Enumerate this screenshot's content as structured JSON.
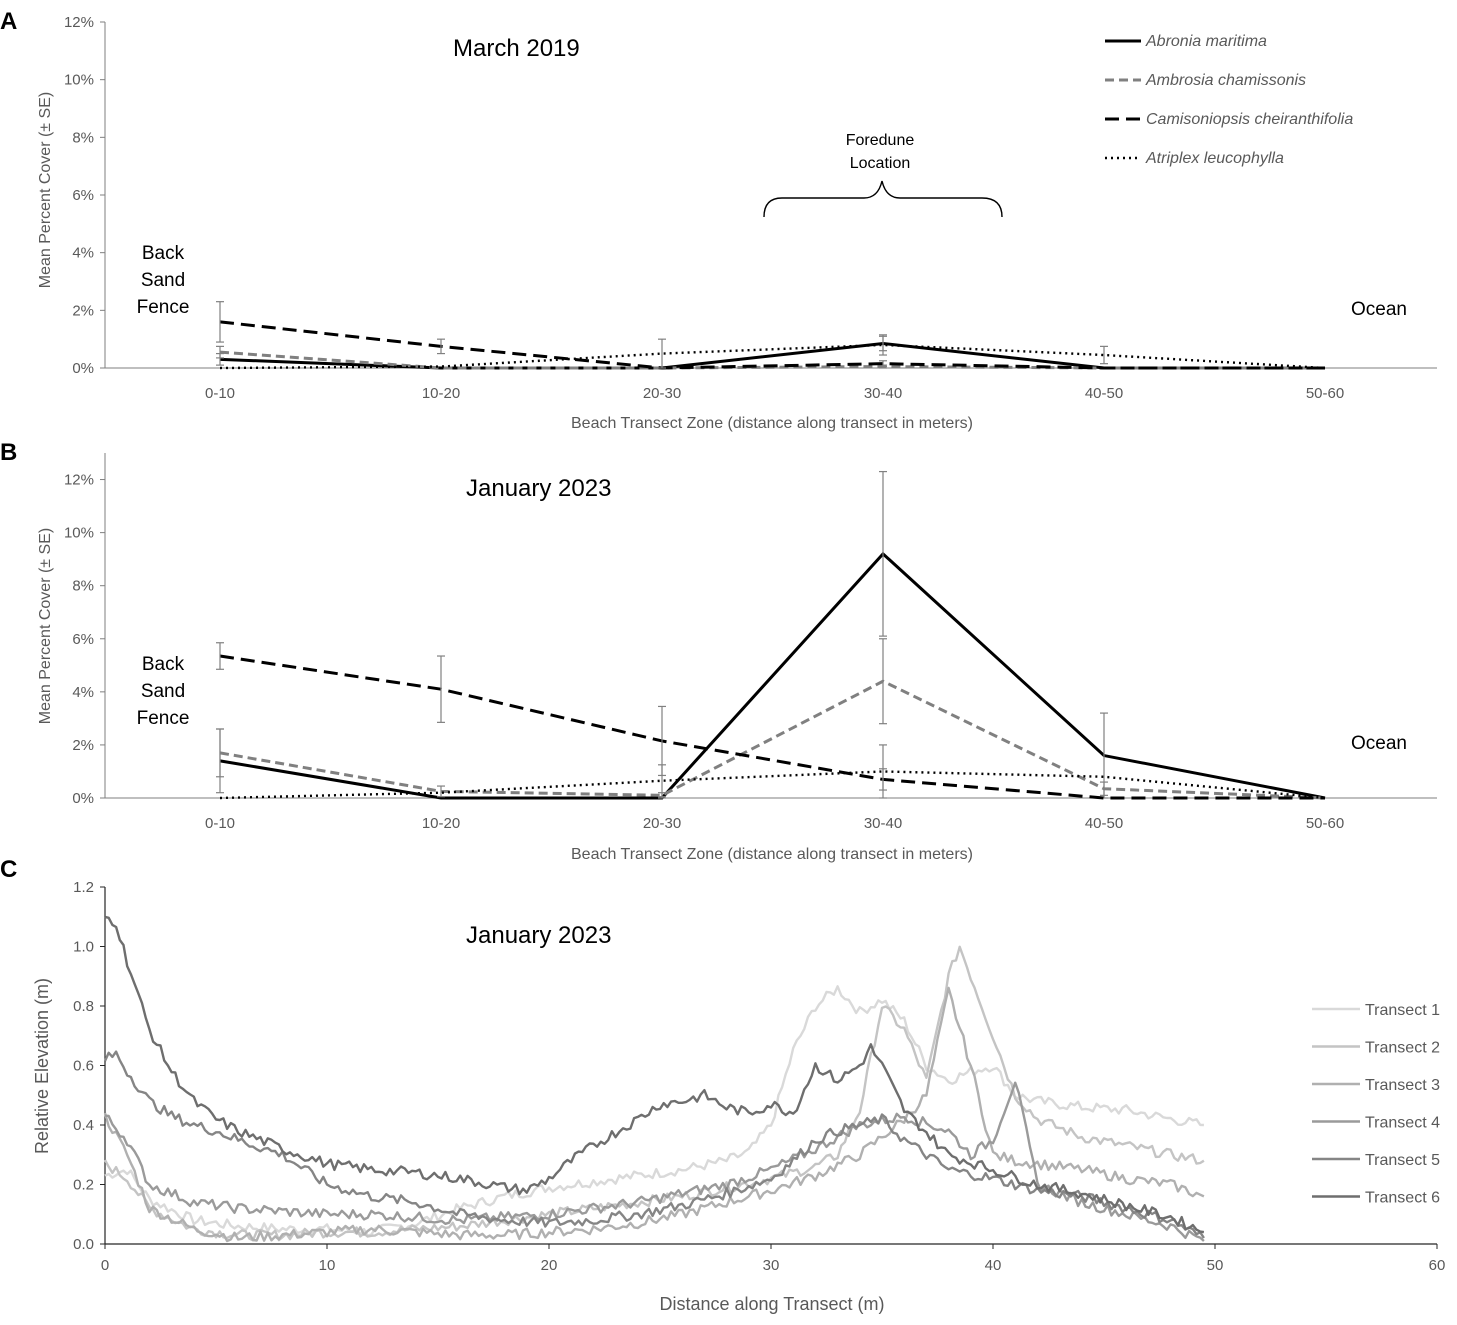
{
  "chart_data": [
    {
      "panel": "A",
      "type": "line",
      "title": "March 2019",
      "xlabel": "Beach Transect Zone (distance along transect in meters)",
      "ylabel": "Mean Percent Cover (± SE)",
      "categories": [
        "0-10",
        "10-20",
        "20-30",
        "30-40",
        "40-50",
        "50-60"
      ],
      "ylim": [
        0,
        12
      ],
      "yticks": [
        "0%",
        "2%",
        "4%",
        "6%",
        "8%",
        "10%",
        "12%"
      ],
      "series": [
        {
          "name": "Abronia maritima",
          "style": "solid",
          "color": "#000000",
          "values": [
            0.3,
            0.0,
            0.0,
            0.85,
            0.0,
            0.0
          ],
          "err": [
            0.2,
            0.0,
            0.0,
            0.25,
            0.0,
            0.0
          ]
        },
        {
          "name": "Ambrosia chamissonis",
          "style": "dash-gray",
          "color": "#808080",
          "values": [
            0.55,
            0.0,
            0.0,
            0.05,
            0.0,
            0.0
          ],
          "err": [
            0.2,
            0.0,
            0.0,
            0.05,
            0.0,
            0.0
          ]
        },
        {
          "name": "Camisoniopsis cheiranthifolia",
          "style": "dash-black",
          "color": "#000000",
          "values": [
            1.6,
            0.75,
            0.0,
            0.15,
            0.0,
            0.0
          ],
          "err": [
            0.7,
            0.25,
            0.0,
            0.1,
            0.0,
            0.0
          ]
        },
        {
          "name": "Atriplex leucophylla",
          "style": "dotted",
          "color": "#000000",
          "values": [
            0.0,
            0.05,
            0.5,
            0.8,
            0.45,
            0.0
          ],
          "err": [
            0.0,
            0.0,
            0.5,
            0.35,
            0.3,
            0.0
          ]
        }
      ],
      "annotations": {
        "left": [
          "Back",
          "Sand",
          "Fence"
        ],
        "right": "Ocean",
        "bracket": [
          "Foredune",
          "Location"
        ]
      },
      "legend_position": "top-right"
    },
    {
      "panel": "B",
      "type": "line",
      "title": "January 2023",
      "xlabel": "Beach Transect Zone (distance along transect in meters)",
      "ylabel": "Mean Percent Cover (± SE)",
      "categories": [
        "0-10",
        "10-20",
        "20-30",
        "30-40",
        "40-50",
        "50-60"
      ],
      "ylim": [
        0,
        13
      ],
      "yticks": [
        "0%",
        "2%",
        "4%",
        "6%",
        "8%",
        "10%",
        "12%"
      ],
      "series": [
        {
          "name": "Abronia maritima",
          "style": "solid",
          "color": "#000000",
          "values": [
            1.4,
            0.0,
            0.0,
            9.2,
            1.6,
            0.0
          ],
          "err": [
            1.2,
            0.0,
            0.0,
            3.1,
            1.6,
            0.0
          ]
        },
        {
          "name": "Ambrosia chamissonis",
          "style": "dash-gray",
          "color": "#808080",
          "values": [
            1.7,
            0.25,
            0.1,
            4.4,
            0.35,
            0.0
          ],
          "err": [
            0.9,
            0.2,
            0.1,
            1.6,
            0.25,
            0.0
          ]
        },
        {
          "name": "Camisoniopsis cheiranthifolia",
          "style": "dash-black",
          "color": "#000000",
          "values": [
            5.35,
            4.1,
            2.15,
            0.7,
            0.0,
            0.0
          ],
          "err": [
            0.5,
            1.25,
            1.3,
            0.4,
            0.0,
            0.0
          ]
        },
        {
          "name": "Atriplex leucophylla",
          "style": "dotted",
          "color": "#000000",
          "values": [
            0.0,
            0.2,
            0.65,
            1.0,
            0.8,
            0.0
          ],
          "err": [
            0.0,
            0.0,
            0.6,
            1.0,
            0.0,
            0.0
          ]
        }
      ],
      "annotations": {
        "left": [
          "Back",
          "Sand",
          "Fence"
        ],
        "right": "Ocean"
      }
    },
    {
      "panel": "C",
      "type": "line",
      "title": "January 2023",
      "xlabel": "Distance along Transect (m)",
      "ylabel": "Relative Elevation (m)",
      "xlim": [
        0,
        60
      ],
      "ylim": [
        0,
        1.2
      ],
      "xticks": [
        "0",
        "10",
        "20",
        "30",
        "40",
        "50",
        "60"
      ],
      "yticks": [
        "0.0",
        "0.2",
        "0.4",
        "0.6",
        "0.8",
        "1.0",
        "1.2"
      ],
      "legend_position": "right",
      "series": [
        {
          "name": "Transect 1",
          "color": "#d9d9d9",
          "x": [
            0,
            1,
            2,
            4,
            6,
            8,
            10,
            12,
            14,
            16,
            18,
            20,
            22,
            24,
            26,
            28,
            29,
            30,
            31,
            32,
            33,
            34,
            35,
            36,
            37,
            38,
            39,
            40,
            41,
            42,
            44,
            46,
            48,
            49.5
          ],
          "y": [
            0.23,
            0.25,
            0.15,
            0.08,
            0.06,
            0.05,
            0.05,
            0.04,
            0.07,
            0.12,
            0.16,
            0.19,
            0.21,
            0.23,
            0.25,
            0.28,
            0.31,
            0.4,
            0.65,
            0.8,
            0.86,
            0.78,
            0.82,
            0.75,
            0.6,
            0.55,
            0.58,
            0.6,
            0.5,
            0.48,
            0.46,
            0.45,
            0.42,
            0.4
          ]
        },
        {
          "name": "Transect 2",
          "color": "#c4c4c4",
          "x": [
            0,
            1,
            2,
            4,
            6,
            8,
            10,
            12,
            14,
            16,
            18,
            20,
            22,
            24,
            26,
            28,
            30,
            32,
            33,
            34,
            35,
            36,
            37,
            38,
            38.5,
            39,
            40,
            41,
            42,
            44,
            46,
            48,
            49.5
          ],
          "y": [
            0.27,
            0.22,
            0.12,
            0.05,
            0.03,
            0.03,
            0.04,
            0.04,
            0.05,
            0.06,
            0.08,
            0.1,
            0.12,
            0.14,
            0.16,
            0.19,
            0.22,
            0.26,
            0.3,
            0.45,
            0.8,
            0.72,
            0.55,
            0.9,
            1.0,
            0.9,
            0.7,
            0.5,
            0.42,
            0.36,
            0.33,
            0.3,
            0.28
          ]
        },
        {
          "name": "Transect 3",
          "color": "#b0b0b0",
          "x": [
            0,
            1,
            2,
            4,
            6,
            8,
            10,
            12,
            14,
            16,
            18,
            20,
            22,
            24,
            26,
            28,
            30,
            32,
            34,
            35,
            36,
            37,
            38,
            39,
            40,
            41,
            42,
            44,
            46,
            48,
            49.5
          ],
          "y": [
            0.43,
            0.3,
            0.12,
            0.05,
            0.02,
            0.03,
            0.04,
            0.05,
            0.04,
            0.03,
            0.03,
            0.04,
            0.05,
            0.07,
            0.1,
            0.14,
            0.18,
            0.23,
            0.3,
            0.36,
            0.42,
            0.5,
            0.85,
            0.6,
            0.3,
            0.28,
            0.27,
            0.25,
            0.22,
            0.2,
            0.16
          ]
        },
        {
          "name": "Transect 4",
          "color": "#9a9a9a",
          "x": [
            0,
            1,
            2,
            4,
            6,
            8,
            10,
            12,
            14,
            16,
            18,
            20,
            22,
            24,
            26,
            28,
            30,
            32,
            34,
            36,
            38,
            39,
            40,
            41,
            42,
            44,
            46,
            48,
            49.5
          ],
          "y": [
            0.43,
            0.35,
            0.2,
            0.14,
            0.12,
            0.11,
            0.1,
            0.1,
            0.09,
            0.08,
            0.09,
            0.1,
            0.12,
            0.14,
            0.17,
            0.2,
            0.25,
            0.32,
            0.4,
            0.43,
            0.38,
            0.3,
            0.35,
            0.55,
            0.2,
            0.14,
            0.1,
            0.06,
            0.01
          ]
        },
        {
          "name": "Transect 5",
          "color": "#858585",
          "x": [
            0,
            0.5,
            1,
            2,
            3,
            4,
            5,
            6,
            8,
            10,
            12,
            14,
            16,
            18,
            20,
            22,
            24,
            26,
            28,
            30,
            31,
            32,
            33,
            34,
            35,
            36,
            38,
            40,
            42,
            44,
            46,
            48,
            49.5
          ],
          "y": [
            0.62,
            0.64,
            0.58,
            0.48,
            0.43,
            0.4,
            0.38,
            0.35,
            0.3,
            0.2,
            0.16,
            0.14,
            0.1,
            0.08,
            0.07,
            0.08,
            0.1,
            0.13,
            0.17,
            0.22,
            0.28,
            0.35,
            0.38,
            0.4,
            0.42,
            0.35,
            0.25,
            0.22,
            0.18,
            0.16,
            0.12,
            0.08,
            0.02
          ]
        },
        {
          "name": "Transect 6",
          "color": "#6e6e6e",
          "x": [
            0,
            0.5,
            1,
            2,
            3,
            4,
            5,
            6,
            8,
            10,
            12,
            14,
            16,
            18,
            19,
            20,
            21,
            22,
            24,
            25,
            26,
            27,
            28,
            29,
            30,
            31,
            32,
            33,
            34,
            34.5,
            35,
            36,
            38,
            40,
            42,
            44,
            46,
            48,
            49.5
          ],
          "y": [
            1.1,
            1.08,
            0.95,
            0.72,
            0.58,
            0.48,
            0.42,
            0.38,
            0.32,
            0.27,
            0.25,
            0.24,
            0.22,
            0.19,
            0.18,
            0.22,
            0.28,
            0.33,
            0.42,
            0.47,
            0.48,
            0.5,
            0.46,
            0.44,
            0.47,
            0.44,
            0.6,
            0.55,
            0.6,
            0.66,
            0.6,
            0.45,
            0.3,
            0.25,
            0.2,
            0.17,
            0.13,
            0.09,
            0.04
          ]
        }
      ]
    }
  ],
  "panel_labels": [
    "A",
    "B",
    "C"
  ]
}
